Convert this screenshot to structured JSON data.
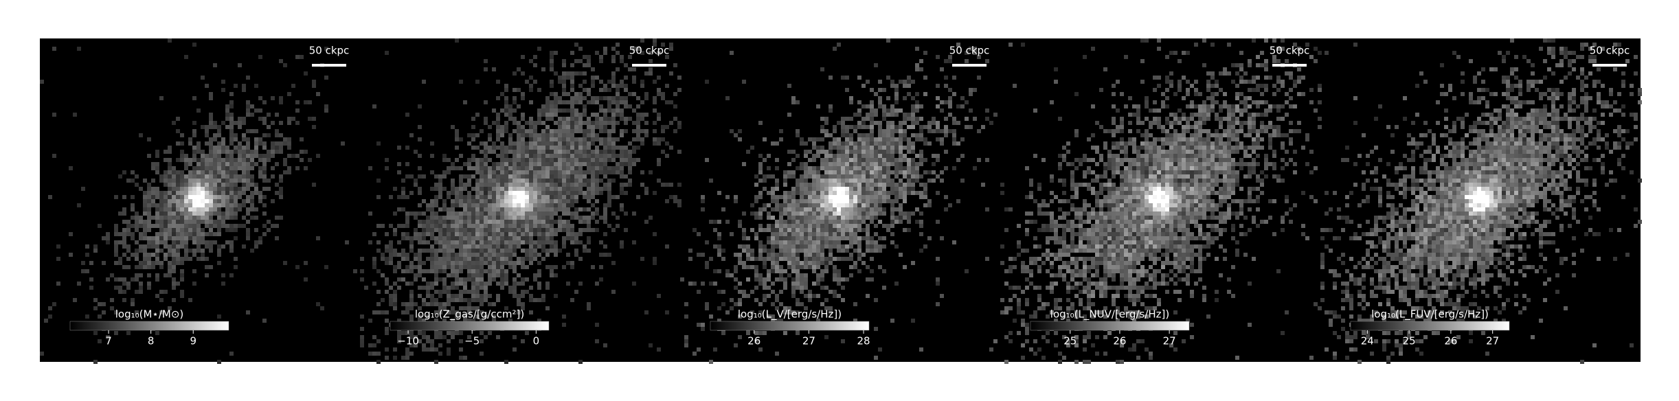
{
  "chart_data": [
    {
      "type": "image",
      "scalebar": "50 ckpc",
      "colorbar_label": "log₁₀(M⋆/M⊙)",
      "clim": [
        6.09,
        9.84
      ],
      "cticks": [
        7,
        8,
        9
      ]
    },
    {
      "type": "image",
      "scalebar": "50 ckpc",
      "colorbar_label": "log₁₀(Z_gas/[g/ccm²])",
      "clim": [
        -11.4,
        1.0
      ],
      "cticks": [
        {
          "value": -10,
          "label": "−10"
        },
        {
          "value": -5,
          "label": "−5"
        },
        0
      ]
    },
    {
      "type": "image",
      "scalebar": "50 ckpc",
      "colorbar_label": "log₁₀(L_V/[erg/s/Hz])",
      "clim": [
        25.2,
        28.1
      ],
      "cticks": [
        26,
        27,
        28
      ]
    },
    {
      "type": "image",
      "scalebar": "50 ckpc",
      "colorbar_label": "log₁₀(L_NUV/[erg/s/Hz])",
      "clim": [
        24.2,
        27.4
      ],
      "cticks": [
        25,
        26,
        27
      ]
    },
    {
      "type": "image",
      "scalebar": "50 ckpc",
      "colorbar_label": "log₁₀(L_FUV/[erg/s/Hz])",
      "clim": [
        23.6,
        27.4
      ],
      "cticks": [
        24,
        25,
        26,
        27
      ]
    }
  ]
}
